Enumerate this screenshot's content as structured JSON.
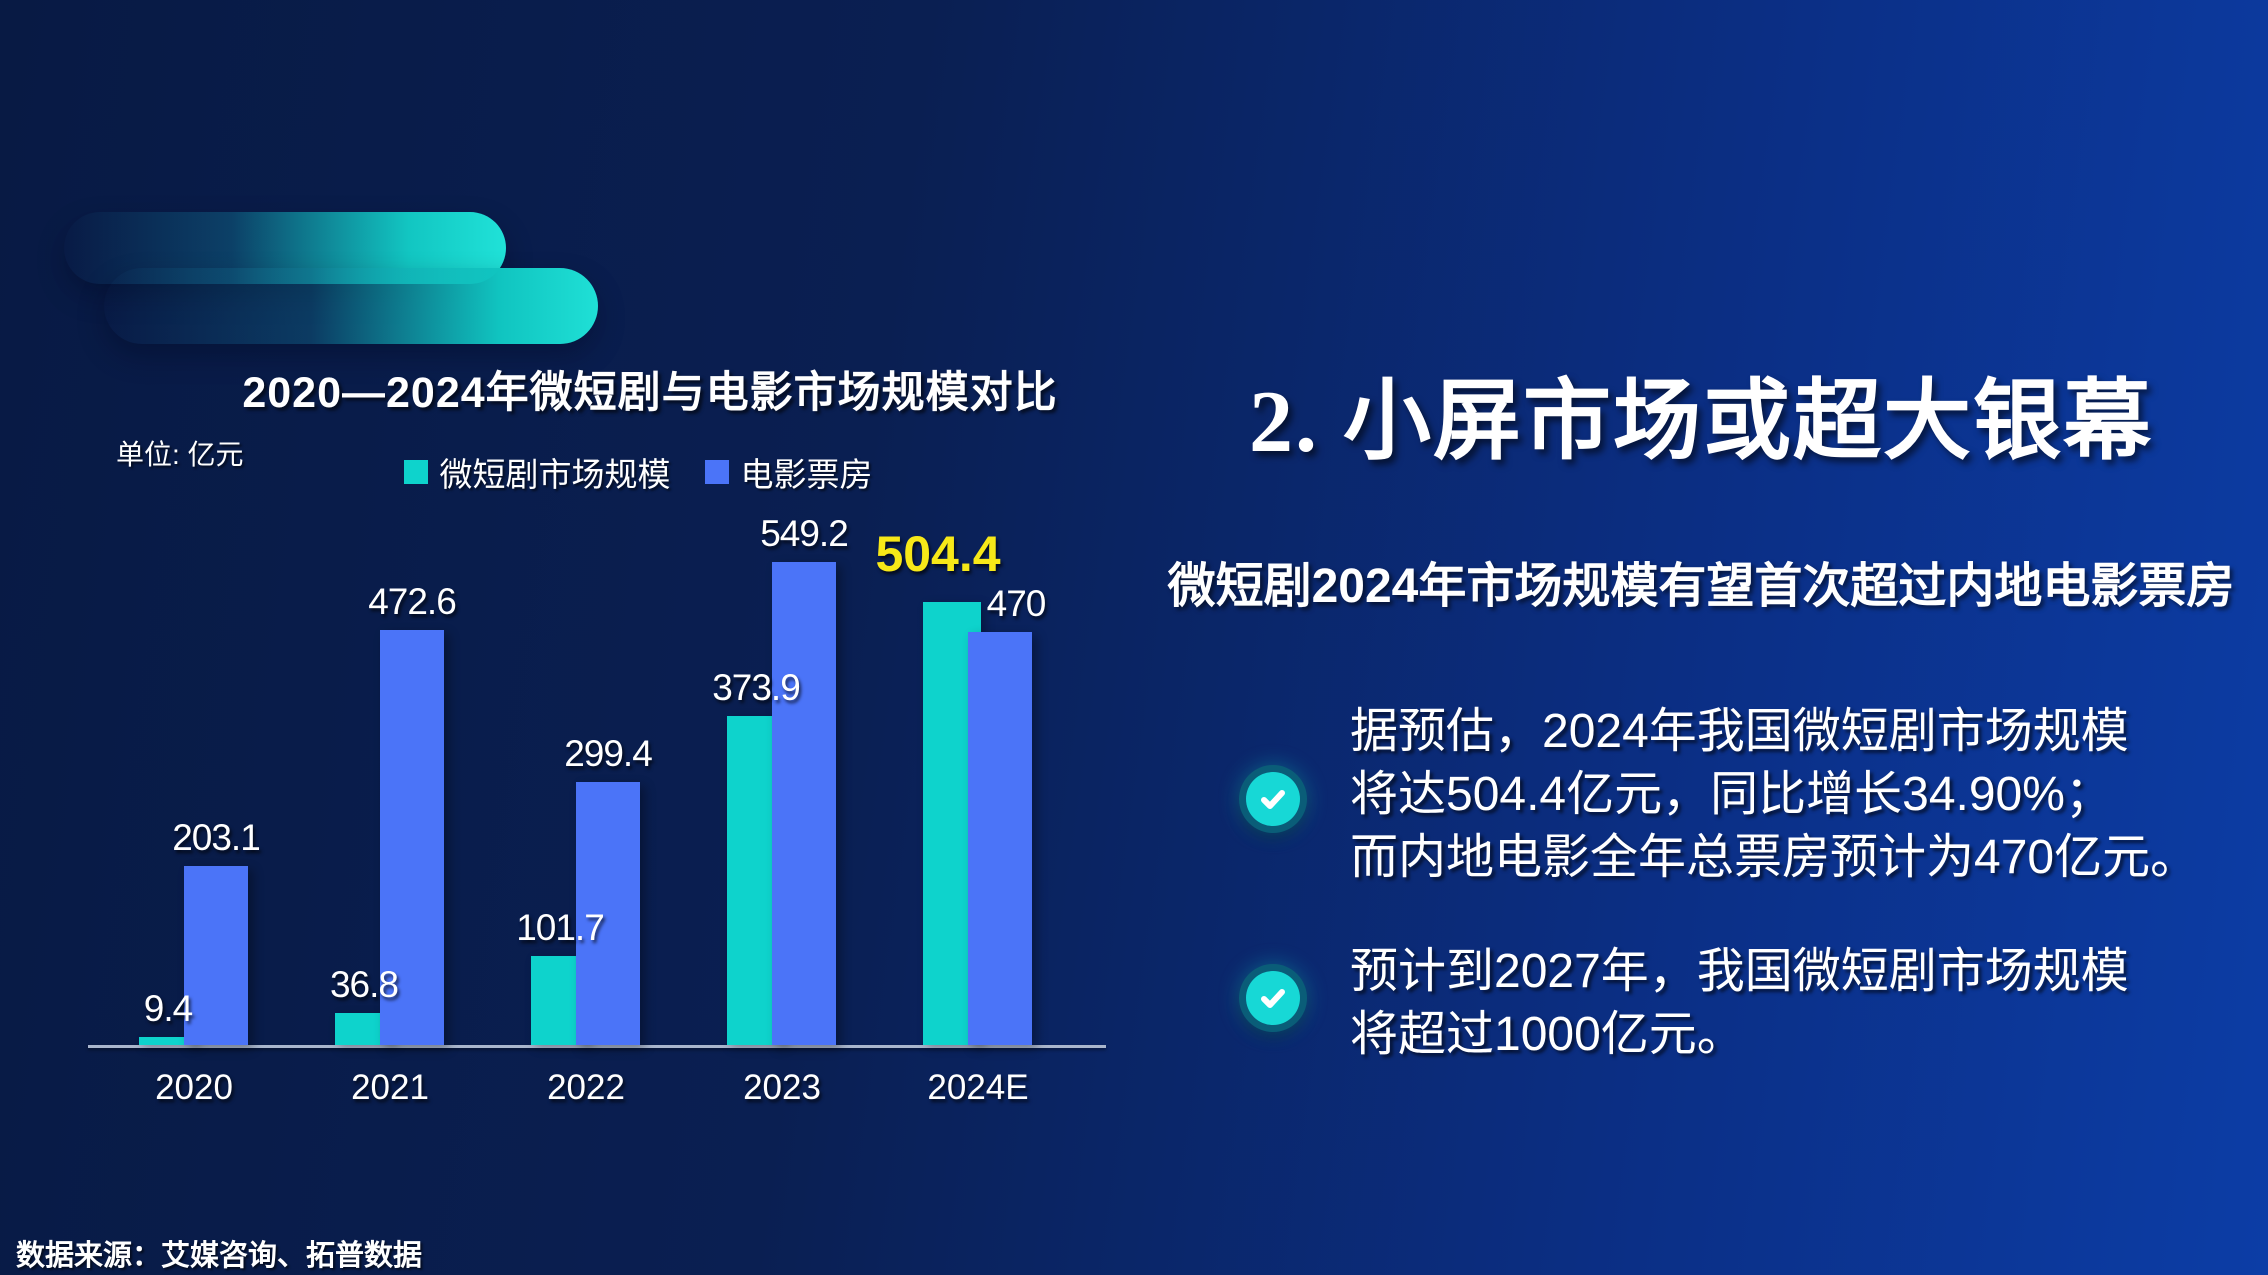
{
  "chart_data": {
    "type": "bar",
    "title": "2020—2024年微短剧与电影市场规模对比",
    "unit_label": "单位: 亿元",
    "categories": [
      "2020",
      "2021",
      "2022",
      "2023",
      "2024E"
    ],
    "series": [
      {
        "name": "微短剧市场规模",
        "color": "#0ed3cc",
        "values": [
          9.4,
          36.8,
          101.7,
          373.9,
          504.4
        ]
      },
      {
        "name": "电影票房",
        "color": "#4b74f8",
        "values": [
          203.1,
          472.6,
          299.4,
          549.2,
          470
        ]
      }
    ],
    "highlight": {
      "series_index": 0,
      "point_index": 4,
      "label_color": "#f7e818"
    },
    "ylabel": "亿元",
    "ylim": [
      0,
      600
    ],
    "grid": false,
    "legend_position": "top"
  },
  "panel": {
    "heading": "2. 小屏市场或超大银幕",
    "subtitle": "微短剧2024年市场规模有望首次超过内地电影票房",
    "bullets": [
      {
        "lines": [
          "据预估，2024年我国微短剧市场规模",
          "将达504.4亿元，同比增长34.90%；",
          "而内地电影全年总票房预计为470亿元。"
        ]
      },
      {
        "lines": [
          "预计到2027年，我国微短剧市场规模",
          "将超过1000亿元。"
        ]
      }
    ]
  },
  "slide": {
    "source": "数据来源：艾媒咨询、拓普数据"
  },
  "colors": {
    "accent_teal": "#0ed3cc",
    "accent_blue": "#4b74f8",
    "highlight_yellow": "#f7e818",
    "background_left": "#081a44",
    "background_right": "#0c3da6",
    "axis": "#a9b6cd"
  }
}
